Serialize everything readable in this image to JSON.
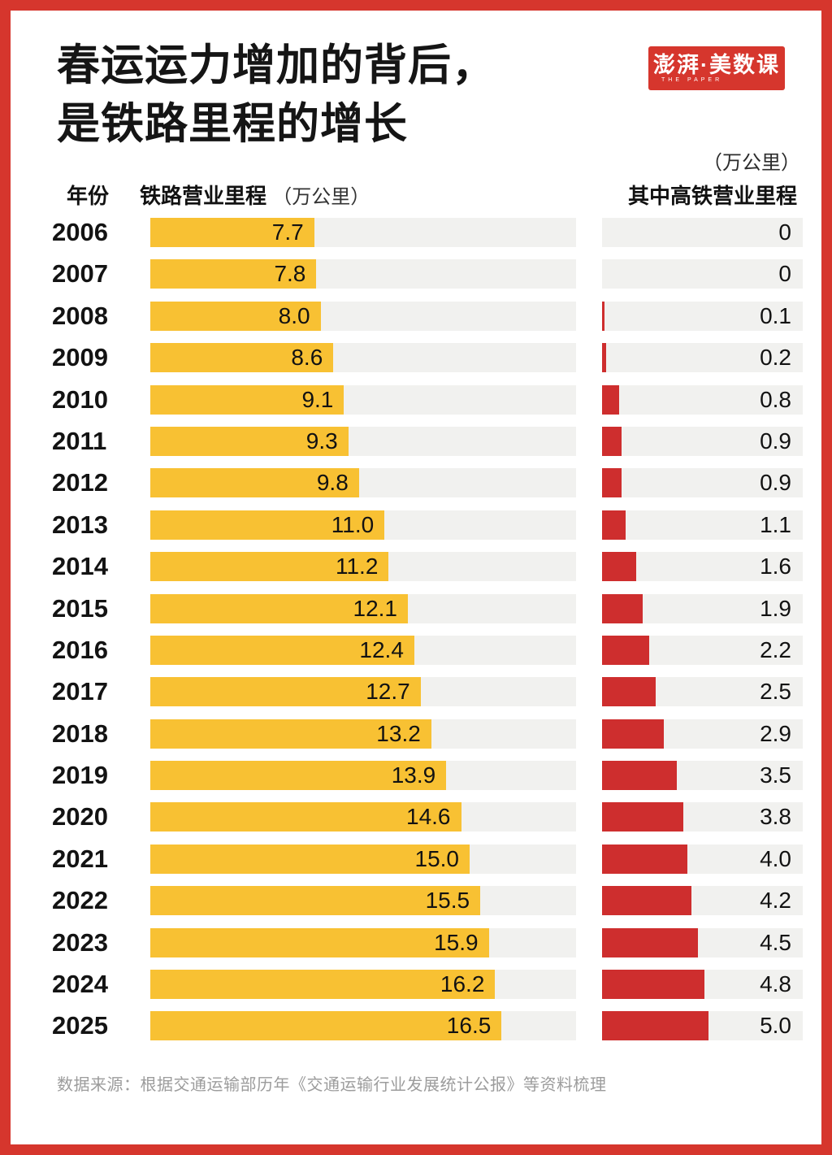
{
  "title": {
    "line1": "春运运力增加的背后，",
    "line2": "是铁路里程的增长"
  },
  "logo": {
    "text": "澎湃·美数课",
    "subtext": "THE PAPER"
  },
  "unit_note_right": "（万公里）",
  "table": {
    "header_year": "年份",
    "header_rail": "铁路营业里程",
    "header_rail_unit": "（万公里）",
    "header_hsr": "其中高铁营业里程"
  },
  "source": "数据来源：根据交通运输部历年《交通运输行业发展统计公报》等资料梳理",
  "colors": {
    "frame_red": "#D6362D",
    "bar_yellow": "#F8C133",
    "bar_red": "#CE2E2E",
    "track_gray": "#F1F1EF"
  },
  "chart_data": {
    "type": "bar",
    "orientation": "horizontal",
    "title": "春运运力增加的背后，是铁路里程的增长",
    "unit": "万公里",
    "categories": [
      2006,
      2007,
      2008,
      2009,
      2010,
      2011,
      2012,
      2013,
      2014,
      2015,
      2016,
      2017,
      2018,
      2019,
      2020,
      2021,
      2022,
      2023,
      2024,
      2025
    ],
    "series": [
      {
        "name": "铁路营业里程",
        "color": "#F8C133",
        "values": [
          7.7,
          7.8,
          8.0,
          8.6,
          9.1,
          9.3,
          9.8,
          11.0,
          11.2,
          12.1,
          12.4,
          12.7,
          13.2,
          13.9,
          14.6,
          15.0,
          15.5,
          15.9,
          16.2,
          16.5
        ]
      },
      {
        "name": "其中高铁营业里程",
        "color": "#CE2E2E",
        "values": [
          0,
          0,
          0.1,
          0.2,
          0.8,
          0.9,
          0.9,
          1.1,
          1.6,
          1.9,
          2.2,
          2.5,
          2.9,
          3.5,
          3.8,
          4.0,
          4.2,
          4.5,
          4.8,
          5.0
        ]
      }
    ],
    "value_labels": "shown",
    "axis_range_rail": [
      0,
      20
    ],
    "axis_range_hsr": [
      0,
      9.4
    ],
    "grid": false,
    "legend_position": "column-headers"
  }
}
